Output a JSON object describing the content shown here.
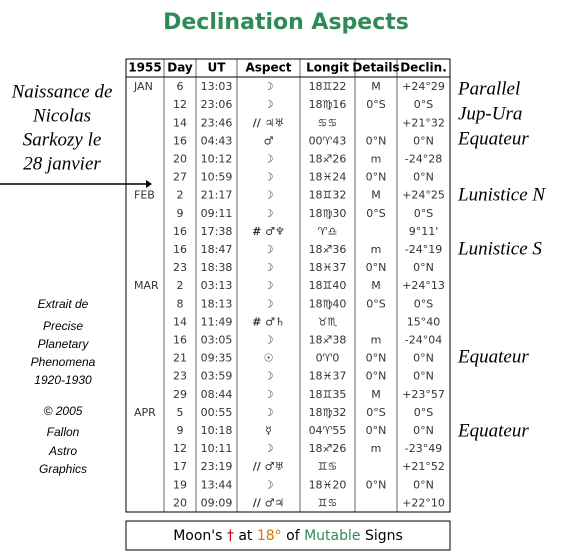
{
  "title": "Declination Aspects",
  "table": {
    "headers": [
      "1955",
      "Day",
      "UT",
      "Aspect",
      "Longit",
      "Details",
      "Declin."
    ],
    "rows": [
      [
        "JAN",
        "6",
        "13:03",
        "☽",
        "18♊22",
        "M",
        "+24°29"
      ],
      [
        null,
        "12",
        "23:06",
        "☽",
        "18♍16",
        "0°S",
        "0°S"
      ],
      [
        null,
        "14",
        "23:46",
        "// ♃♅",
        "♋♋",
        null,
        "+21°32"
      ],
      [
        null,
        "16",
        "04:43",
        "♂",
        "00♈43",
        "0°N",
        "0°N"
      ],
      [
        null,
        "20",
        "10:12",
        "☽",
        "18♐26",
        "m",
        "-24°28"
      ],
      [
        null,
        "27",
        "10:59",
        "☽",
        "18♓24",
        "0°N",
        "0°N"
      ],
      [
        "FEB",
        "2",
        "21:17",
        "☽",
        "18♊32",
        "M",
        "+24°25"
      ],
      [
        null,
        "9",
        "09:11",
        "☽",
        "18♍30",
        "0°S",
        "0°S"
      ],
      [
        null,
        "16",
        "17:38",
        "# ♂♆",
        "♈♎",
        null,
        "9°11'"
      ],
      [
        null,
        "16",
        "18:47",
        "☽",
        "18♐36",
        "m",
        "-24°19"
      ],
      [
        null,
        "23",
        "18:38",
        "☽",
        "18♓37",
        "0°N",
        "0°N"
      ],
      [
        "MAR",
        "2",
        "03:13",
        "☽",
        "18♊40",
        "M",
        "+24°13"
      ],
      [
        null,
        "8",
        "18:13",
        "☽",
        "18♍40",
        "0°S",
        "0°S"
      ],
      [
        null,
        "14",
        "11:49",
        "# ♂♄",
        "♉♏",
        null,
        "15°40"
      ],
      [
        null,
        "16",
        "03:05",
        "☽",
        "18♐38",
        "m",
        "-24°04"
      ],
      [
        null,
        "21",
        "09:35",
        "☉",
        "0♈0",
        "0°N",
        "0°N"
      ],
      [
        null,
        "23",
        "03:59",
        "☽",
        "18♓37",
        "0°N",
        "0°N"
      ],
      [
        null,
        "29",
        "08:44",
        "☽",
        "18♊35",
        "M",
        "+23°57"
      ],
      [
        "APR",
        "5",
        "00:55",
        "☽",
        "18♍32",
        "0°S",
        "0°S"
      ],
      [
        null,
        "9",
        "10:18",
        "☿",
        "04♈55",
        "0°N",
        "0°N"
      ],
      [
        null,
        "12",
        "10:11",
        "☽",
        "18♐26",
        "m",
        "-23°49"
      ],
      [
        null,
        "17",
        "23:19",
        "// ♂♅",
        "♊♋",
        null,
        "+21°52"
      ],
      [
        null,
        "19",
        "13:44",
        "☽",
        "18♓20",
        "0°N",
        "0°N"
      ],
      [
        null,
        "20",
        "09:09",
        "// ♂♃",
        "♊♋",
        null,
        "+22°10"
      ]
    ]
  },
  "birth_note": [
    "Naissance de",
    "Nicolas",
    "Sarkozy le",
    "28 janvier"
  ],
  "credit": [
    "Extrait de",
    "Precise",
    "Planetary",
    "Phenomena",
    "1920-1930",
    "© 2005",
    "Fallon",
    "Astro",
    "Graphics"
  ],
  "right_notes": [
    "Parallel",
    "Jup-Ura",
    "Equateur",
    "Lunistice N",
    "Lunistice S",
    "Equateur",
    "Equateur"
  ],
  "footer": [
    "Moon's",
    "†",
    "at",
    "18°",
    "of",
    "Mutable",
    "Signs"
  ]
}
